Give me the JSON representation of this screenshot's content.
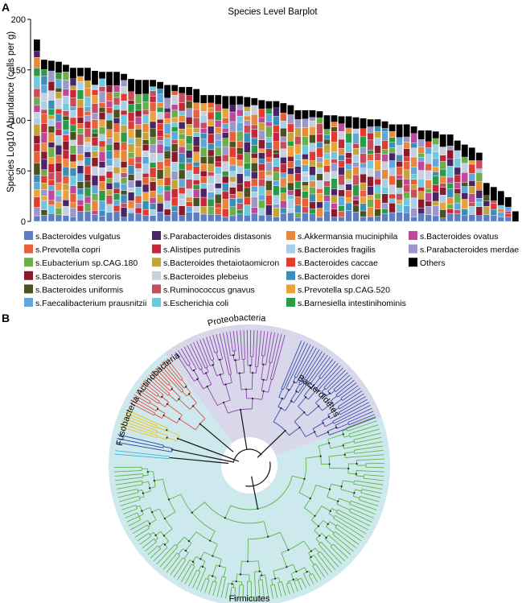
{
  "panel_a": {
    "letter": "A"
  },
  "panel_b": {
    "letter": "B"
  },
  "chart_data": [
    {
      "type": "bar",
      "stacked": true,
      "title": "Species Level Barplot",
      "xlabel": "",
      "ylabel": "Species  Log10 Abundance (cells per g)",
      "ylim": [
        0,
        200
      ],
      "yticks": [
        0,
        50,
        100,
        150,
        200
      ],
      "sample_count": 62,
      "sample_totals": [
        180,
        160,
        159,
        158,
        155,
        152,
        152,
        152,
        149,
        148,
        148,
        148,
        146,
        141,
        140,
        140,
        140,
        138,
        135,
        135,
        133,
        133,
        131,
        125,
        125,
        125,
        124,
        124,
        124,
        123,
        122,
        120,
        119,
        119,
        117,
        115,
        110,
        110,
        110,
        109,
        105,
        105,
        104,
        104,
        103,
        102,
        101,
        101,
        99,
        96,
        96,
        96,
        94,
        90,
        90,
        89,
        86,
        86,
        80,
        76,
        73,
        68
      ],
      "tail": [
        {
          "value": 38
        },
        {
          "value": 34
        },
        {
          "value": 30
        },
        {
          "value": 24
        },
        {
          "value": 10
        }
      ],
      "series": [
        {
          "name": "s.Bacteroides vulgatus",
          "color": "#5b7fc0"
        },
        {
          "name": "s.Prevotella copri",
          "color": "#e8603a"
        },
        {
          "name": "s.Eubacterium sp.CAG.180",
          "color": "#6aaf4b"
        },
        {
          "name": "s.Bacteroides stercoris",
          "color": "#8b1a2c"
        },
        {
          "name": "s.Bacteroides uniformis",
          "color": "#4a5220"
        },
        {
          "name": "s.Faecalibacterium prausnitzii",
          "color": "#5fa8dc"
        },
        {
          "name": "s.Parabacteroides distasonis",
          "color": "#4a2465"
        },
        {
          "name": "s.Alistipes putredinis",
          "color": "#c8273a"
        },
        {
          "name": "s.Bacteroides thetaiotaomicron",
          "color": "#c3a33a"
        },
        {
          "name": "s.Bacteroides plebeius",
          "color": "#c8cfe0"
        },
        {
          "name": "s.Ruminococcus gnavus",
          "color": "#c84c5c"
        },
        {
          "name": "s.Escherichia coli",
          "color": "#6fc9de"
        },
        {
          "name": "s.Akkermansia muciniphila",
          "color": "#e8883a"
        },
        {
          "name": "s.Bacteroides fragilis",
          "color": "#a9cfe6"
        },
        {
          "name": "s.Bacteroides caccae",
          "color": "#e03c30"
        },
        {
          "name": "s.Bacteroides dorei",
          "color": "#3a8fb8"
        },
        {
          "name": "s.Prevotella sp.CAG.520",
          "color": "#eba23a"
        },
        {
          "name": "s.Barnesiella intestinihominis",
          "color": "#2a9c48"
        },
        {
          "name": "s.Bacteroides ovatus",
          "color": "#c0489a"
        },
        {
          "name": "s.Parabacteroides merdae",
          "color": "#9a98c8"
        },
        {
          "name": "Others",
          "color": "#000000"
        }
      ]
    },
    {
      "type": "phylogenetic-tree",
      "layout": "circular",
      "clades": [
        {
          "name": "Proteobacteria",
          "color": "#8e44ad",
          "tips": 34
        },
        {
          "name": "Bacteroidetes",
          "color": "#3a4fb0",
          "tips": 34
        },
        {
          "name": "Firmicutes",
          "color": "#5fb547",
          "tips": 110
        },
        {
          "name": "Fusobacteria",
          "color": "#2c3e9e",
          "tips": 3
        },
        {
          "name": "Actinobacteria",
          "color": "#e74c3c",
          "tips": 20
        }
      ],
      "clade_extra": [
        {
          "name": "",
          "color": "#f1c40f",
          "tips": 7
        },
        {
          "name": "",
          "color": "#3fb0d9",
          "tips": 2
        }
      ]
    }
  ]
}
